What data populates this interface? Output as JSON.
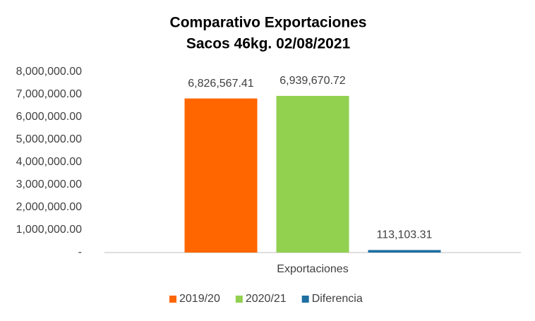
{
  "chart_data": {
    "type": "bar",
    "title": "Comparativo Exportaciones",
    "subtitle": "Sacos 46kg. 02/08/2021",
    "categories": [
      "Exportaciones"
    ],
    "series": [
      {
        "name": "2019/20",
        "color": "#ff6600",
        "values": [
          6826567.41
        ],
        "value_labels": [
          "6,826,567.41"
        ]
      },
      {
        "name": "2020/21",
        "color": "#92d050",
        "values": [
          6939670.72
        ],
        "value_labels": [
          "6,939,670.72"
        ]
      },
      {
        "name": "Diferencia",
        "color": "#1f6fa3",
        "values": [
          113103.31
        ],
        "value_labels": [
          "113,103.31"
        ]
      }
    ],
    "ylim": [
      0,
      8000000
    ],
    "yticks": [
      {
        "value": 0,
        "label": "-"
      },
      {
        "value": 1000000,
        "label": "1,000,000.00"
      },
      {
        "value": 2000000,
        "label": "2,000,000.00"
      },
      {
        "value": 3000000,
        "label": "3,000,000.00"
      },
      {
        "value": 4000000,
        "label": "4,000,000.00"
      },
      {
        "value": 5000000,
        "label": "5,000,000.00"
      },
      {
        "value": 6000000,
        "label": "6,000,000.00"
      },
      {
        "value": 7000000,
        "label": "7,000,000.00"
      },
      {
        "value": 8000000,
        "label": "8,000,000.00"
      }
    ],
    "grid": false,
    "legend": "bottom"
  }
}
